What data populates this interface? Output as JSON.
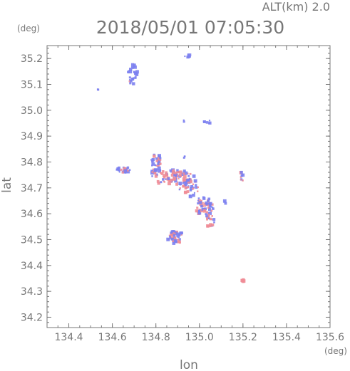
{
  "chart_data": {
    "type": "scatter",
    "title": "2018/05/01 07:05:30",
    "subtitle": "ALT(km) 2.0",
    "xlabel": "lon",
    "ylabel": "lat",
    "x_unit": "(deg)",
    "y_unit": "(deg)",
    "xlim": [
      134.3,
      135.6
    ],
    "ylim": [
      34.16,
      35.25
    ],
    "x_ticks": [
      134.4,
      134.6,
      134.8,
      135.0,
      135.2,
      135.4,
      135.6
    ],
    "x_tick_labels": [
      "134.4",
      "134.6",
      "134.8",
      "135.0",
      "135.2",
      "135.4",
      "135.6"
    ],
    "y_ticks": [
      34.2,
      34.3,
      34.4,
      34.5,
      34.6,
      34.7,
      34.8,
      34.9,
      35.0,
      35.1,
      35.2
    ],
    "y_tick_labels": [
      "34.2",
      "34.3",
      "34.4",
      "34.5",
      "34.6",
      "34.7",
      "34.8",
      "34.9",
      "35.0",
      "35.1",
      "35.2"
    ],
    "grid": false,
    "colors": {
      "positive": "#f08c96",
      "negative": "#7b7ff0",
      "axis": "#777777"
    },
    "clusters": [
      {
        "lon": 134.69,
        "lat": 35.14,
        "rx": 0.025,
        "ry": 0.04,
        "n": 26,
        "neg_ratio": 0.9
      },
      {
        "lon": 134.535,
        "lat": 35.08,
        "rx": 0.004,
        "ry": 0.003,
        "n": 2,
        "neg_ratio": 1.0
      },
      {
        "lon": 134.945,
        "lat": 35.21,
        "rx": 0.02,
        "ry": 0.005,
        "n": 6,
        "neg_ratio": 1.0
      },
      {
        "lon": 135.04,
        "lat": 34.955,
        "rx": 0.02,
        "ry": 0.006,
        "n": 6,
        "neg_ratio": 1.0
      },
      {
        "lon": 134.93,
        "lat": 34.96,
        "rx": 0.005,
        "ry": 0.005,
        "n": 2,
        "neg_ratio": 1.0
      },
      {
        "lon": 134.65,
        "lat": 34.77,
        "rx": 0.03,
        "ry": 0.012,
        "n": 28,
        "neg_ratio": 0.7
      },
      {
        "lon": 134.8,
        "lat": 34.79,
        "rx": 0.025,
        "ry": 0.045,
        "n": 40,
        "neg_ratio": 0.55
      },
      {
        "lon": 134.88,
        "lat": 34.74,
        "rx": 0.1,
        "ry": 0.03,
        "n": 90,
        "neg_ratio": 0.45
      },
      {
        "lon": 134.95,
        "lat": 34.7,
        "rx": 0.05,
        "ry": 0.035,
        "n": 40,
        "neg_ratio": 0.6
      },
      {
        "lon": 135.02,
        "lat": 34.63,
        "rx": 0.045,
        "ry": 0.035,
        "n": 50,
        "neg_ratio": 0.55
      },
      {
        "lon": 135.05,
        "lat": 34.575,
        "rx": 0.02,
        "ry": 0.03,
        "n": 18,
        "neg_ratio": 0.5
      },
      {
        "lon": 134.89,
        "lat": 34.51,
        "rx": 0.04,
        "ry": 0.025,
        "n": 45,
        "neg_ratio": 0.55
      },
      {
        "lon": 134.93,
        "lat": 34.82,
        "rx": 0.006,
        "ry": 0.006,
        "n": 3,
        "neg_ratio": 1.0
      },
      {
        "lon": 135.195,
        "lat": 34.745,
        "rx": 0.008,
        "ry": 0.02,
        "n": 8,
        "neg_ratio": 0.3
      },
      {
        "lon": 135.12,
        "lat": 34.645,
        "rx": 0.006,
        "ry": 0.006,
        "n": 3,
        "neg_ratio": 1.0
      },
      {
        "lon": 135.2,
        "lat": 34.34,
        "rx": 0.008,
        "ry": 0.005,
        "n": 7,
        "neg_ratio": 0.1
      }
    ]
  }
}
